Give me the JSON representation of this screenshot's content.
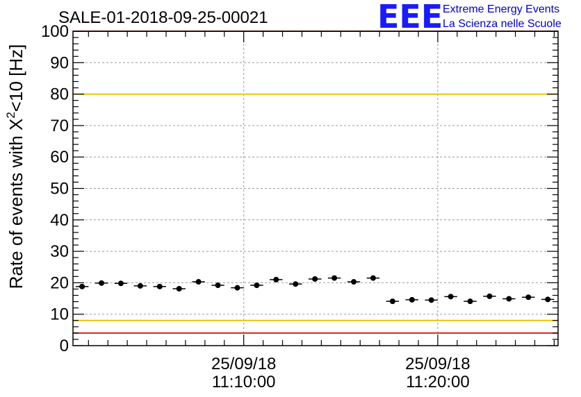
{
  "chart_data": {
    "type": "scatter",
    "title": "SALE-01-2018-09-25-00021",
    "ylabel": "Rate of events with X<sup>2</sup><10 [Hz]",
    "ylabel_parts": {
      "pre": "Rate of events with X",
      "sup": "2",
      "post": "<10 [Hz]"
    },
    "xlabel": "",
    "ylim": [
      0,
      100
    ],
    "yticks": [
      0,
      10,
      20,
      30,
      40,
      50,
      60,
      70,
      80,
      90,
      100
    ],
    "xticks": [
      {
        "time_min": 10,
        "date": "25/09/18",
        "time": "11:10:00"
      },
      {
        "time_min": 20,
        "date": "25/09/18",
        "time": "11:20:00"
      }
    ],
    "x_unit": "minutes after 11:00:00 on 25/09/18",
    "xlim": [
      1.2,
      26.2
    ],
    "grid": true,
    "reference_lines": [
      {
        "y": 80,
        "color": "#e8c800"
      },
      {
        "y": 8,
        "color": "#e8c800"
      },
      {
        "y": 100,
        "color": "#e02020"
      },
      {
        "y": 4,
        "color": "#e02020"
      }
    ],
    "series": [
      {
        "marker_color": "#000000",
        "x": [
          1.67,
          2.67,
          3.67,
          4.67,
          5.67,
          6.67,
          7.67,
          8.67,
          9.67,
          10.67,
          11.67,
          12.67,
          13.67,
          14.67,
          15.67,
          16.67,
          17.67,
          18.67,
          19.67,
          20.67,
          21.67,
          22.67,
          23.67,
          24.67,
          25.67
        ],
        "y": [
          18.8,
          19.9,
          19.8,
          19.0,
          18.8,
          18.1,
          20.3,
          19.2,
          18.4,
          19.2,
          21.0,
          19.6,
          21.2,
          21.5,
          20.3,
          21.5,
          14.1,
          14.6,
          14.5,
          15.6,
          14.1,
          15.7,
          14.9,
          15.4,
          14.7
        ],
        "x_halfwidth": 0.33
      }
    ]
  },
  "logo": {
    "mark": "EEE",
    "line1": "Extreme Energy Events",
    "line2": "La Scienza nelle Scuole"
  }
}
